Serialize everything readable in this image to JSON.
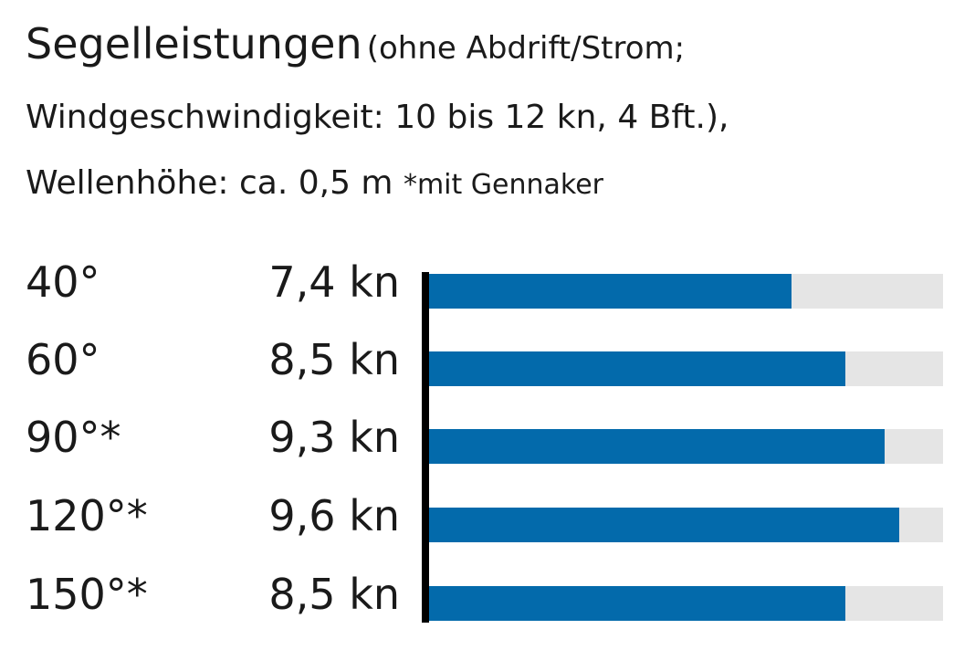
{
  "chart_data": {
    "type": "bar",
    "orientation": "horizontal",
    "title": "Segelleistungen",
    "subtitle_line1": "(ohne Abdrift/Strom;",
    "subtitle_line2": "Windgeschwindigkeit: 10 bis 12 kn, 4 Bft.),",
    "subtitle_line3": "Wellenhöhe: ca. 0,5 m",
    "note": "*mit Gennaker",
    "categories": [
      "40°",
      "60°",
      "90°*",
      "120°*",
      "150°*"
    ],
    "values": [
      7.4,
      8.5,
      9.3,
      9.6,
      8.5
    ],
    "value_labels": [
      "7,4 kn",
      "8,5 kn",
      "9,3 kn",
      "9,6 kn",
      "8,5 kn"
    ],
    "xlim": [
      0,
      10.5
    ],
    "unit": "kn",
    "grid": false,
    "colors": {
      "bar": "#036aab",
      "track": "#e5e5e5",
      "axis": "#000000"
    }
  }
}
